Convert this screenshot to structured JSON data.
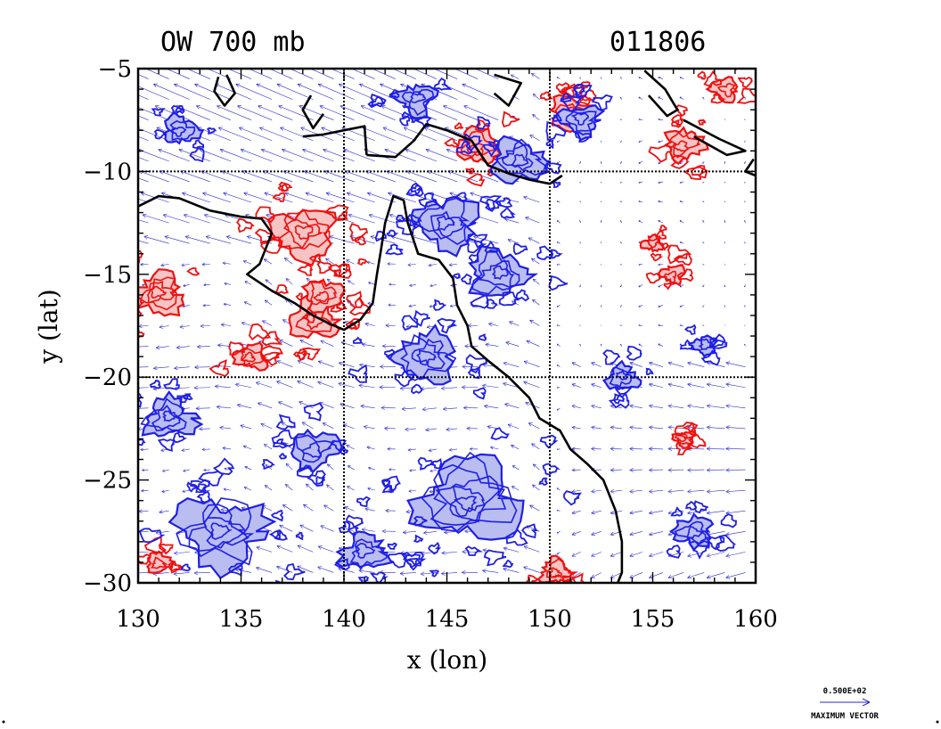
{
  "figure": {
    "title_left": "OW 700 mb",
    "title_right": "011806",
    "xlabel": "x (lon)",
    "ylabel": "y (lat)",
    "x_ticks": [
      "130",
      "135",
      "140",
      "145",
      "150",
      "155",
      "160"
    ],
    "y_ticks": [
      "−5",
      "−10",
      "−15",
      "−20",
      "−25",
      "−30"
    ],
    "legend": {
      "value_label": "0.500E+02",
      "caption": "MAXIMUM VECTOR"
    }
  },
  "chart_data": {
    "type": "map",
    "xlim": [
      130,
      160
    ],
    "ylim": [
      -30,
      -5
    ],
    "gridlines": {
      "lon": [
        140,
        150
      ],
      "lat": [
        -10,
        -20
      ]
    },
    "colors": {
      "negative_contour": "#1f1fe6",
      "negative_fill": "#b9bdf0",
      "positive_contour": "#ee1111",
      "positive_fill": "#f7c4c4",
      "coastline": "#000000",
      "vector": "#2a2ad0"
    },
    "coastline": [
      [
        [
          130.0,
          -11.7
        ],
        [
          131.0,
          -11.2
        ],
        [
          132.0,
          -11.3
        ],
        [
          133.5,
          -11.9
        ],
        [
          135.0,
          -12.2
        ],
        [
          136.0,
          -12.3
        ],
        [
          136.5,
          -13.0
        ],
        [
          135.9,
          -14.5
        ],
        [
          135.3,
          -15.0
        ],
        [
          136.5,
          -15.8
        ],
        [
          137.6,
          -16.4
        ],
        [
          138.5,
          -17.0
        ],
        [
          139.3,
          -17.4
        ],
        [
          140.0,
          -17.7
        ],
        [
          140.8,
          -17.2
        ],
        [
          141.4,
          -16.4
        ],
        [
          141.6,
          -15.0
        ],
        [
          141.8,
          -13.8
        ],
        [
          142.0,
          -12.5
        ],
        [
          142.4,
          -11.2
        ],
        [
          142.9,
          -11.4
        ],
        [
          143.1,
          -12.5
        ],
        [
          143.6,
          -14.0
        ],
        [
          144.6,
          -14.3
        ],
        [
          145.3,
          -15.2
        ],
        [
          145.5,
          -16.5
        ],
        [
          146.0,
          -17.5
        ],
        [
          146.2,
          -18.5
        ],
        [
          147.0,
          -19.2
        ],
        [
          148.0,
          -20.0
        ],
        [
          149.0,
          -21.0
        ],
        [
          149.5,
          -22.0
        ],
        [
          150.5,
          -22.6
        ],
        [
          151.0,
          -23.5
        ],
        [
          151.8,
          -24.2
        ],
        [
          152.6,
          -25.0
        ],
        [
          153.2,
          -26.5
        ],
        [
          153.5,
          -28.0
        ],
        [
          153.5,
          -29.5
        ],
        [
          153.3,
          -30.0
        ]
      ],
      [
        [
          141.1,
          -9.2
        ],
        [
          142.5,
          -9.3
        ],
        [
          143.4,
          -8.5
        ],
        [
          144.0,
          -7.7
        ],
        [
          145.0,
          -8.0
        ],
        [
          146.2,
          -8.5
        ],
        [
          147.0,
          -9.7
        ],
        [
          148.0,
          -10.1
        ],
        [
          149.0,
          -10.4
        ],
        [
          150.0,
          -10.6
        ],
        [
          150.6,
          -10.2
        ]
      ],
      [
        [
          138.0,
          -8.3
        ],
        [
          139.0,
          -8.2
        ],
        [
          140.0,
          -8.0
        ],
        [
          141.0,
          -7.8
        ],
        [
          141.1,
          -9.2
        ]
      ],
      [
        [
          147.3,
          -5.3
        ],
        [
          148.6,
          -5.7
        ],
        [
          148.0,
          -6.8
        ],
        [
          147.3,
          -6.2
        ]
      ],
      [
        [
          154.6,
          -5.1
        ],
        [
          155.6,
          -6.0
        ],
        [
          156.2,
          -7.0
        ],
        [
          155.7,
          -7.3
        ],
        [
          154.8,
          -6.3
        ]
      ],
      [
        [
          156.5,
          -7.5
        ],
        [
          158.2,
          -8.4
        ],
        [
          159.5,
          -9.0
        ],
        [
          158.6,
          -9.2
        ],
        [
          157.0,
          -8.3
        ]
      ],
      [
        [
          159.9,
          -9.4
        ],
        [
          159.5,
          -10.0
        ],
        [
          160.0,
          -10.2
        ]
      ],
      [
        [
          134.3,
          -5.3
        ],
        [
          134.7,
          -6.2
        ],
        [
          134.2,
          -6.8
        ],
        [
          133.7,
          -6.1
        ],
        [
          133.9,
          -5.4
        ]
      ],
      [
        [
          138.4,
          -6.3
        ],
        [
          138.0,
          -7.0
        ],
        [
          138.5,
          -7.9
        ],
        [
          139.0,
          -7.2
        ]
      ]
    ],
    "vector_field": {
      "lon_range": [
        130,
        160
      ],
      "lat_range": [
        -30,
        -5
      ],
      "spacing_deg": 1.0,
      "max_vector": 50.0,
      "pattern": "westward-to-northwestward flow over the north-west, weak winds in the east, easterlies onshore south of 20S"
    },
    "ow_features": [
      {
        "sign": "positive",
        "lon": 138.0,
        "lat": -13.0,
        "size": 1.6
      },
      {
        "sign": "positive",
        "lon": 131.0,
        "lat": -16.0,
        "size": 1.3
      },
      {
        "sign": "positive",
        "lon": 138.5,
        "lat": -17.2,
        "size": 1.2
      },
      {
        "sign": "positive",
        "lon": 139.0,
        "lat": -16.0,
        "size": 1.0
      },
      {
        "sign": "positive",
        "lon": 146.5,
        "lat": -8.8,
        "size": 1.1
      },
      {
        "sign": "positive",
        "lon": 151.0,
        "lat": -7.2,
        "size": 1.0
      },
      {
        "sign": "positive",
        "lon": 156.5,
        "lat": -8.7,
        "size": 1.0
      },
      {
        "sign": "positive",
        "lon": 156.0,
        "lat": -15.0,
        "size": 0.6
      },
      {
        "sign": "positive",
        "lon": 155.0,
        "lat": -13.5,
        "size": 0.5
      },
      {
        "sign": "positive",
        "lon": 156.5,
        "lat": -23.0,
        "size": 0.5
      },
      {
        "sign": "positive",
        "lon": 158.5,
        "lat": -6.0,
        "size": 0.7
      },
      {
        "sign": "positive",
        "lon": 150.3,
        "lat": -29.5,
        "size": 0.8
      },
      {
        "sign": "positive",
        "lon": 131.0,
        "lat": -29.0,
        "size": 0.6
      },
      {
        "sign": "positive",
        "lon": 135.5,
        "lat": -19.0,
        "size": 0.8
      },
      {
        "sign": "negative",
        "lon": 145.0,
        "lat": -12.5,
        "size": 1.6
      },
      {
        "sign": "negative",
        "lon": 147.5,
        "lat": -15.0,
        "size": 1.5
      },
      {
        "sign": "negative",
        "lon": 146.0,
        "lat": -26.0,
        "size": 2.6
      },
      {
        "sign": "negative",
        "lon": 134.0,
        "lat": -27.5,
        "size": 2.2
      },
      {
        "sign": "negative",
        "lon": 148.5,
        "lat": -9.5,
        "size": 1.4
      },
      {
        "sign": "negative",
        "lon": 144.0,
        "lat": -19.0,
        "size": 1.6
      },
      {
        "sign": "negative",
        "lon": 151.5,
        "lat": -7.5,
        "size": 1.0
      },
      {
        "sign": "negative",
        "lon": 153.5,
        "lat": -20.0,
        "size": 0.8
      },
      {
        "sign": "negative",
        "lon": 157.5,
        "lat": -18.5,
        "size": 0.6
      },
      {
        "sign": "negative",
        "lon": 131.5,
        "lat": -22.0,
        "size": 1.3
      },
      {
        "sign": "negative",
        "lon": 138.5,
        "lat": -23.5,
        "size": 1.2
      },
      {
        "sign": "negative",
        "lon": 141.0,
        "lat": -28.5,
        "size": 1.2
      },
      {
        "sign": "negative",
        "lon": 157.0,
        "lat": -27.5,
        "size": 1.0
      },
      {
        "sign": "negative",
        "lon": 132.0,
        "lat": -8.0,
        "size": 0.9
      },
      {
        "sign": "negative",
        "lon": 143.5,
        "lat": -6.5,
        "size": 1.0
      }
    ]
  }
}
